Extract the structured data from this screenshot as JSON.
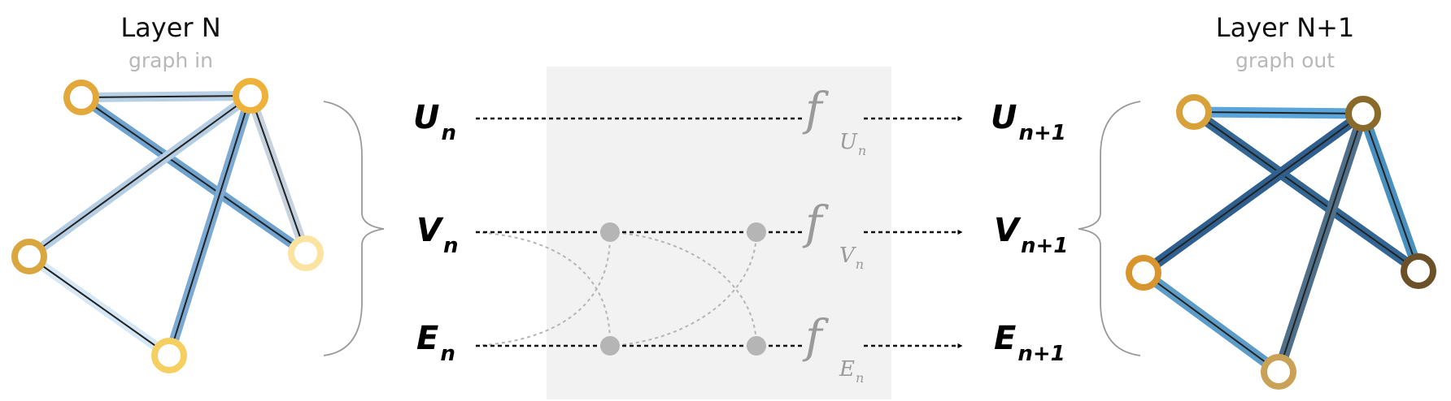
{
  "left_panel": {
    "title": "Layer N",
    "subtitle": "graph in"
  },
  "right_panel": {
    "title": "Layer N+1",
    "subtitle": "graph out"
  },
  "inputs": {
    "u": {
      "main": "U",
      "sub": "n"
    },
    "v": {
      "main": "V",
      "sub": "n"
    },
    "e": {
      "main": "E",
      "sub": "n"
    }
  },
  "outputs": {
    "u": {
      "main": "U",
      "sub": "n+1"
    },
    "v": {
      "main": "V",
      "sub": "n+1"
    },
    "e": {
      "main": "E",
      "sub": "n+1"
    }
  },
  "functions": {
    "u": {
      "symbol": "f",
      "sub": "U",
      "subsub": "n"
    },
    "v": {
      "symbol": "f",
      "sub": "V",
      "subsub": "n"
    },
    "e": {
      "symbol": "f",
      "sub": "E",
      "subsub": "n"
    }
  },
  "colors": {
    "node_gold": "#e3a83a",
    "node_light_gold": "#f6cf63",
    "node_pale": "#fbe3a2",
    "node_dark_gold": "#8a6a2a",
    "node_brown": "#6b5028",
    "edge_blue": "#6fa3cf",
    "edge_light_blue": "#b6d1e8",
    "edge_dark_blue": "#2f5f8f",
    "edge_slate": "#50708a",
    "panel_grey": "#f2f2f2",
    "junction_grey": "#b5b5b5"
  }
}
